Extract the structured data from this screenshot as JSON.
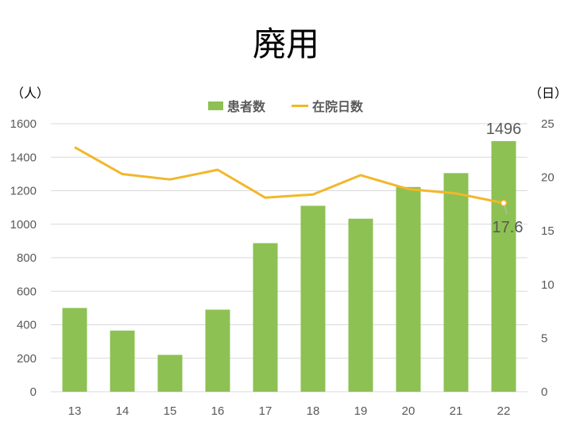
{
  "chart_data": {
    "type": "bar+line",
    "title": "廃用",
    "categories": [
      "13",
      "14",
      "15",
      "16",
      "17",
      "18",
      "19",
      "20",
      "21",
      "22"
    ],
    "series": [
      {
        "name": "患者数",
        "type": "bar",
        "axis": "left",
        "values": [
          500,
          365,
          220,
          490,
          887,
          1110,
          1033,
          1222,
          1305,
          1496
        ],
        "color": "#8DC153"
      },
      {
        "name": "在院日数",
        "type": "line",
        "axis": "right",
        "values": [
          22.8,
          20.3,
          19.8,
          20.7,
          18.1,
          18.4,
          20.2,
          18.9,
          18.5,
          17.6
        ],
        "color": "#F2B72A"
      }
    ],
    "y_left_unit": "（人）",
    "y_right_unit": "（日）",
    "y_left_lim": [
      0,
      1600
    ],
    "y_left_ticks": [
      "0",
      "200",
      "400",
      "600",
      "800",
      "1000",
      "1200",
      "1400",
      "1600"
    ],
    "y_right_lim": [
      0,
      25
    ],
    "y_right_ticks": [
      "0",
      "5",
      "10",
      "15",
      "20",
      "25"
    ],
    "data_labels": [
      {
        "series": "患者数",
        "category": "22",
        "text": "1496"
      },
      {
        "series": "在院日数",
        "category": "22",
        "text": "17.6"
      }
    ],
    "legend": {
      "position": "top"
    },
    "grid": true
  }
}
